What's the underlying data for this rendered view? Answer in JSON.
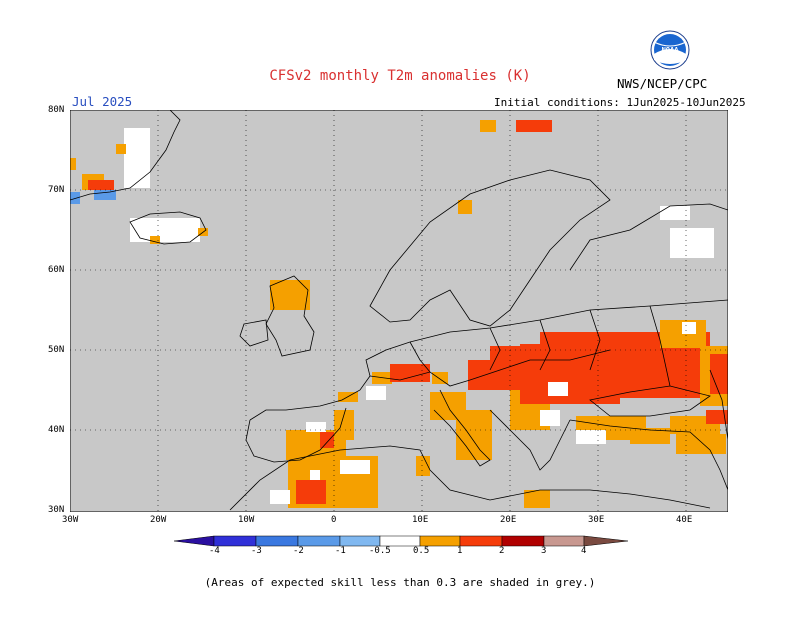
{
  "header": {
    "title": "CFSv2 monthly T2m anomalies (K)",
    "month": "Jul 2025",
    "initial_conditions": "Initial conditions: 1Jun2025-10Jun2025",
    "agency": "NWS/NCEP/CPC",
    "logo_text": "NOAA"
  },
  "map": {
    "lat_labels": [
      "80N",
      "70N",
      "60N",
      "50N",
      "40N",
      "30N"
    ],
    "lon_labels": [
      "30W",
      "20W",
      "10W",
      "0",
      "10E",
      "20E",
      "30E",
      "40E"
    ],
    "lat_range": [
      30,
      80
    ],
    "lon_range": [
      -30,
      45
    ],
    "background_grey": "#c8c8c8"
  },
  "colorbar": {
    "labels": [
      "-4",
      "-3",
      "-2",
      "-1",
      "-0.5",
      "0.5",
      "1",
      "2",
      "3",
      "4"
    ],
    "colors": [
      "#2a0fa0",
      "#3030d8",
      "#3a78e0",
      "#5a9ae8",
      "#80b8f0",
      "#ffffff",
      "#f5a000",
      "#f53c0a",
      "#b00000",
      "#c89890",
      "#7a4a40"
    ]
  },
  "footnote": "(Areas of expected skill less than 0.3 are shaded in grey.)"
}
